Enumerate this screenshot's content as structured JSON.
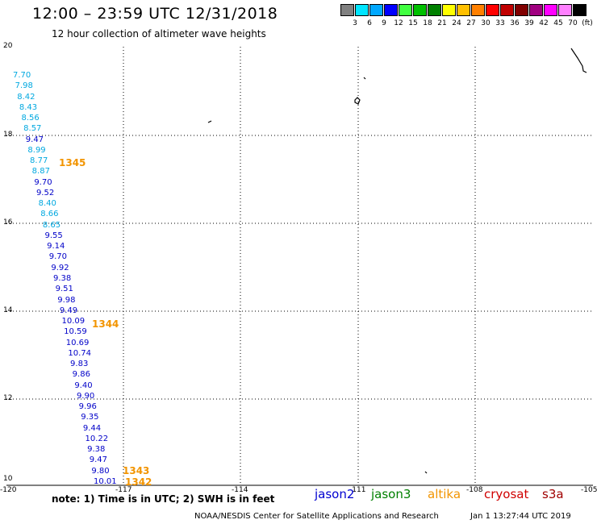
{
  "header": {
    "title": "12:00 – 23:59 UTC 12/31/2018",
    "subtitle": "12 hour collection of altimeter wave heights"
  },
  "scale": {
    "swatches": [
      "#808080",
      "#00e5ff",
      "#00a8ff",
      "#0000ff",
      "#40ff40",
      "#00c000",
      "#008000",
      "#ffff00",
      "#ffc000",
      "#ff8000",
      "#ff0000",
      "#c00000",
      "#800000",
      "#a00080",
      "#ff00ff",
      "#ff80ff",
      "#000000"
    ],
    "labels": [
      "3",
      "6",
      "9",
      "12",
      "15",
      "18",
      "21",
      "24",
      "27",
      "30",
      "33",
      "36",
      "39",
      "42",
      "45",
      "70",
      "(ft)"
    ]
  },
  "axes": {
    "lon_ticks": [
      "-120",
      "-117",
      "-114",
      "-111",
      "-108",
      "-105"
    ],
    "lat_ticks": [
      "20",
      "18",
      "16",
      "14",
      "12",
      "10"
    ]
  },
  "observations": [
    {
      "value": "7.70",
      "color": "#00a8e0"
    },
    {
      "value": "7.98",
      "color": "#00a8e0"
    },
    {
      "value": "8.42",
      "color": "#00a8e0"
    },
    {
      "value": "8.43",
      "color": "#00a8e0"
    },
    {
      "value": "8.56",
      "color": "#00a8e0"
    },
    {
      "value": "8.57",
      "color": "#00a8e0"
    },
    {
      "value": "9.47",
      "color": "#0000c8"
    },
    {
      "value": "8.99",
      "color": "#00a8e0"
    },
    {
      "value": "8.77",
      "color": "#00a8e0"
    },
    {
      "value": "8.87",
      "color": "#00a8e0"
    },
    {
      "value": "9.70",
      "color": "#0000c8"
    },
    {
      "value": "9.52",
      "color": "#0000c8"
    },
    {
      "value": "8.40",
      "color": "#00a8e0"
    },
    {
      "value": "8.66",
      "color": "#00a8e0"
    },
    {
      "value": "8.65",
      "color": "#00a8e0"
    },
    {
      "value": "9.55",
      "color": "#0000c8"
    },
    {
      "value": "9.14",
      "color": "#0000c8"
    },
    {
      "value": "9.70",
      "color": "#0000c8"
    },
    {
      "value": "9.92",
      "color": "#0000c8"
    },
    {
      "value": "9.38",
      "color": "#0000c8"
    },
    {
      "value": "9.51",
      "color": "#0000c8"
    },
    {
      "value": "9.98",
      "color": "#0000c8"
    },
    {
      "value": "9.49",
      "color": "#0000c8"
    },
    {
      "value": "10.09",
      "color": "#0000c8"
    },
    {
      "value": "10.59",
      "color": "#0000c8"
    },
    {
      "value": "10.69",
      "color": "#0000c8"
    },
    {
      "value": "10.74",
      "color": "#0000c8"
    },
    {
      "value": "9.83",
      "color": "#0000c8"
    },
    {
      "value": "9.86",
      "color": "#0000c8"
    },
    {
      "value": "9.40",
      "color": "#0000c8"
    },
    {
      "value": "9.90",
      "color": "#0000c8"
    },
    {
      "value": "9.96",
      "color": "#0000c8"
    },
    {
      "value": "9.35",
      "color": "#0000c8"
    },
    {
      "value": "9.44",
      "color": "#0000c8"
    },
    {
      "value": "10.22",
      "color": "#0000c8"
    },
    {
      "value": "9.38",
      "color": "#0000c8"
    },
    {
      "value": "9.47",
      "color": "#0000c8"
    },
    {
      "value": "9.80",
      "color": "#0000c8"
    },
    {
      "value": "10.01",
      "color": "#0000c8"
    }
  ],
  "pass_times": [
    "1345",
    "1344",
    "1343",
    "1342"
  ],
  "note": "note:  1) Time is in UTC;  2) SWH is in feet",
  "satellites": [
    {
      "name": "jason2",
      "color": "#0000d0"
    },
    {
      "name": "jason3",
      "color": "#008000"
    },
    {
      "name": "altika",
      "color": "#f29400"
    },
    {
      "name": "cryosat",
      "color": "#d00000"
    },
    {
      "name": "s3a",
      "color": "#a00000"
    }
  ],
  "credit": "NOAA/NESDIS Center for Satellite Applications and Research",
  "timestamp": "Jan  1 13:27:44 UTC 2019"
}
